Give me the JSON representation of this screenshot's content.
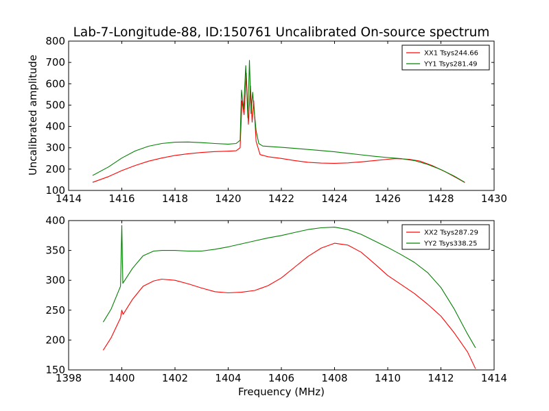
{
  "title": "Lab-7-Longitude-88, ID:150761 Uncalibrated On-source spectrum",
  "ylabel": "Uncalibrated amplitude",
  "xlabel": "Frequency (MHz)",
  "chart_data": [
    {
      "type": "line",
      "xlim": [
        1414,
        1430
      ],
      "ylim": [
        100,
        800
      ],
      "xticks": [
        1414,
        1416,
        1418,
        1420,
        1422,
        1424,
        1426,
        1428,
        1430
      ],
      "yticks": [
        100,
        200,
        300,
        400,
        500,
        600,
        700,
        800
      ],
      "legend_position": "top-right",
      "series": [
        {
          "name": "XX1 Tsys244.66",
          "color": "#ff0000",
          "points": [
            [
              1414.9,
              138
            ],
            [
              1415.5,
              165
            ],
            [
              1416,
              193
            ],
            [
              1416.5,
              217
            ],
            [
              1417,
              237
            ],
            [
              1417.5,
              252
            ],
            [
              1418,
              264
            ],
            [
              1418.5,
              272
            ],
            [
              1419,
              278
            ],
            [
              1419.5,
              282
            ],
            [
              1420,
              284
            ],
            [
              1420.3,
              286
            ],
            [
              1420.45,
              300
            ],
            [
              1420.52,
              520
            ],
            [
              1420.6,
              455
            ],
            [
              1420.68,
              650
            ],
            [
              1420.76,
              410
            ],
            [
              1420.84,
              590
            ],
            [
              1420.9,
              420
            ],
            [
              1420.96,
              520
            ],
            [
              1421.05,
              330
            ],
            [
              1421.2,
              268
            ],
            [
              1421.5,
              258
            ],
            [
              1422,
              250
            ],
            [
              1422.5,
              240
            ],
            [
              1423,
              232
            ],
            [
              1423.5,
              228
            ],
            [
              1424,
              227
            ],
            [
              1424.5,
              229
            ],
            [
              1425,
              234
            ],
            [
              1425.5,
              240
            ],
            [
              1426,
              246
            ],
            [
              1426.3,
              249
            ],
            [
              1426.8,
              246
            ],
            [
              1427.2,
              238
            ],
            [
              1427.7,
              215
            ],
            [
              1428.2,
              185
            ],
            [
              1428.6,
              158
            ],
            [
              1428.9,
              137
            ]
          ]
        },
        {
          "name": "YY1 Tsys281.49",
          "color": "#008000",
          "points": [
            [
              1414.9,
              170
            ],
            [
              1415.5,
              210
            ],
            [
              1416,
              252
            ],
            [
              1416.5,
              285
            ],
            [
              1417,
              307
            ],
            [
              1417.5,
              320
            ],
            [
              1418,
              326
            ],
            [
              1418.5,
              327
            ],
            [
              1419,
              324
            ],
            [
              1419.5,
              320
            ],
            [
              1420,
              317
            ],
            [
              1420.3,
              320
            ],
            [
              1420.45,
              335
            ],
            [
              1420.5,
              570
            ],
            [
              1420.58,
              480
            ],
            [
              1420.66,
              685
            ],
            [
              1420.74,
              440
            ],
            [
              1420.8,
              710
            ],
            [
              1420.86,
              460
            ],
            [
              1420.92,
              560
            ],
            [
              1420.98,
              470
            ],
            [
              1421.05,
              380
            ],
            [
              1421.15,
              320
            ],
            [
              1421.3,
              308
            ],
            [
              1422,
              302
            ],
            [
              1422.5,
              297
            ],
            [
              1423,
              292
            ],
            [
              1423.5,
              287
            ],
            [
              1424,
              281
            ],
            [
              1424.5,
              274
            ],
            [
              1425,
              267
            ],
            [
              1425.5,
              260
            ],
            [
              1426,
              254
            ],
            [
              1426.5,
              249
            ],
            [
              1427,
              240
            ],
            [
              1427.5,
              222
            ],
            [
              1428,
              198
            ],
            [
              1428.5,
              167
            ],
            [
              1428.9,
              138
            ]
          ]
        }
      ]
    },
    {
      "type": "line",
      "xlim": [
        1398,
        1414
      ],
      "ylim": [
        150,
        400
      ],
      "xticks": [
        1398,
        1400,
        1402,
        1404,
        1406,
        1408,
        1410,
        1412,
        1414
      ],
      "yticks": [
        150,
        200,
        250,
        300,
        350,
        400
      ],
      "legend_position": "top-right",
      "series": [
        {
          "name": "XX2 Tsys287.29",
          "color": "#ff0000",
          "points": [
            [
              1399.3,
              183
            ],
            [
              1399.6,
              204
            ],
            [
              1399.95,
              237
            ],
            [
              1400,
              250
            ],
            [
              1400.05,
              243
            ],
            [
              1400.4,
              268
            ],
            [
              1400.8,
              290
            ],
            [
              1401.2,
              299
            ],
            [
              1401.5,
              302
            ],
            [
              1402,
              300
            ],
            [
              1402.5,
              294
            ],
            [
              1403,
              287
            ],
            [
              1403.5,
              281
            ],
            [
              1404,
              279
            ],
            [
              1404.5,
              280
            ],
            [
              1405,
              283
            ],
            [
              1405.5,
              291
            ],
            [
              1406,
              304
            ],
            [
              1406.5,
              322
            ],
            [
              1407,
              340
            ],
            [
              1407.5,
              354
            ],
            [
              1408,
              362
            ],
            [
              1408.5,
              359
            ],
            [
              1409,
              347
            ],
            [
              1409.5,
              328
            ],
            [
              1410,
              308
            ],
            [
              1410.5,
              293
            ],
            [
              1411,
              278
            ],
            [
              1411.5,
              260
            ],
            [
              1412,
              240
            ],
            [
              1412.5,
              212
            ],
            [
              1413,
              180
            ],
            [
              1413.3,
              152
            ]
          ]
        },
        {
          "name": "YY2 Tsys338.25",
          "color": "#008000",
          "points": [
            [
              1399.3,
              230
            ],
            [
              1399.6,
              252
            ],
            [
              1399.95,
              290
            ],
            [
              1400.0,
              392
            ],
            [
              1400.04,
              295
            ],
            [
              1400.4,
              320
            ],
            [
              1400.8,
              341
            ],
            [
              1401.2,
              349
            ],
            [
              1401.5,
              350
            ],
            [
              1402,
              350
            ],
            [
              1402.5,
              349
            ],
            [
              1403,
              349
            ],
            [
              1403.5,
              352
            ],
            [
              1404,
              356
            ],
            [
              1404.5,
              361
            ],
            [
              1405,
              366
            ],
            [
              1405.5,
              371
            ],
            [
              1406,
              375
            ],
            [
              1406.5,
              380
            ],
            [
              1407,
              385
            ],
            [
              1407.5,
              388
            ],
            [
              1408,
              389
            ],
            [
              1408.5,
              385
            ],
            [
              1409,
              377
            ],
            [
              1409.5,
              366
            ],
            [
              1410,
              355
            ],
            [
              1410.5,
              343
            ],
            [
              1411,
              330
            ],
            [
              1411.5,
              313
            ],
            [
              1412,
              288
            ],
            [
              1412.5,
              252
            ],
            [
              1413,
              210
            ],
            [
              1413.3,
              187
            ]
          ]
        }
      ]
    }
  ]
}
